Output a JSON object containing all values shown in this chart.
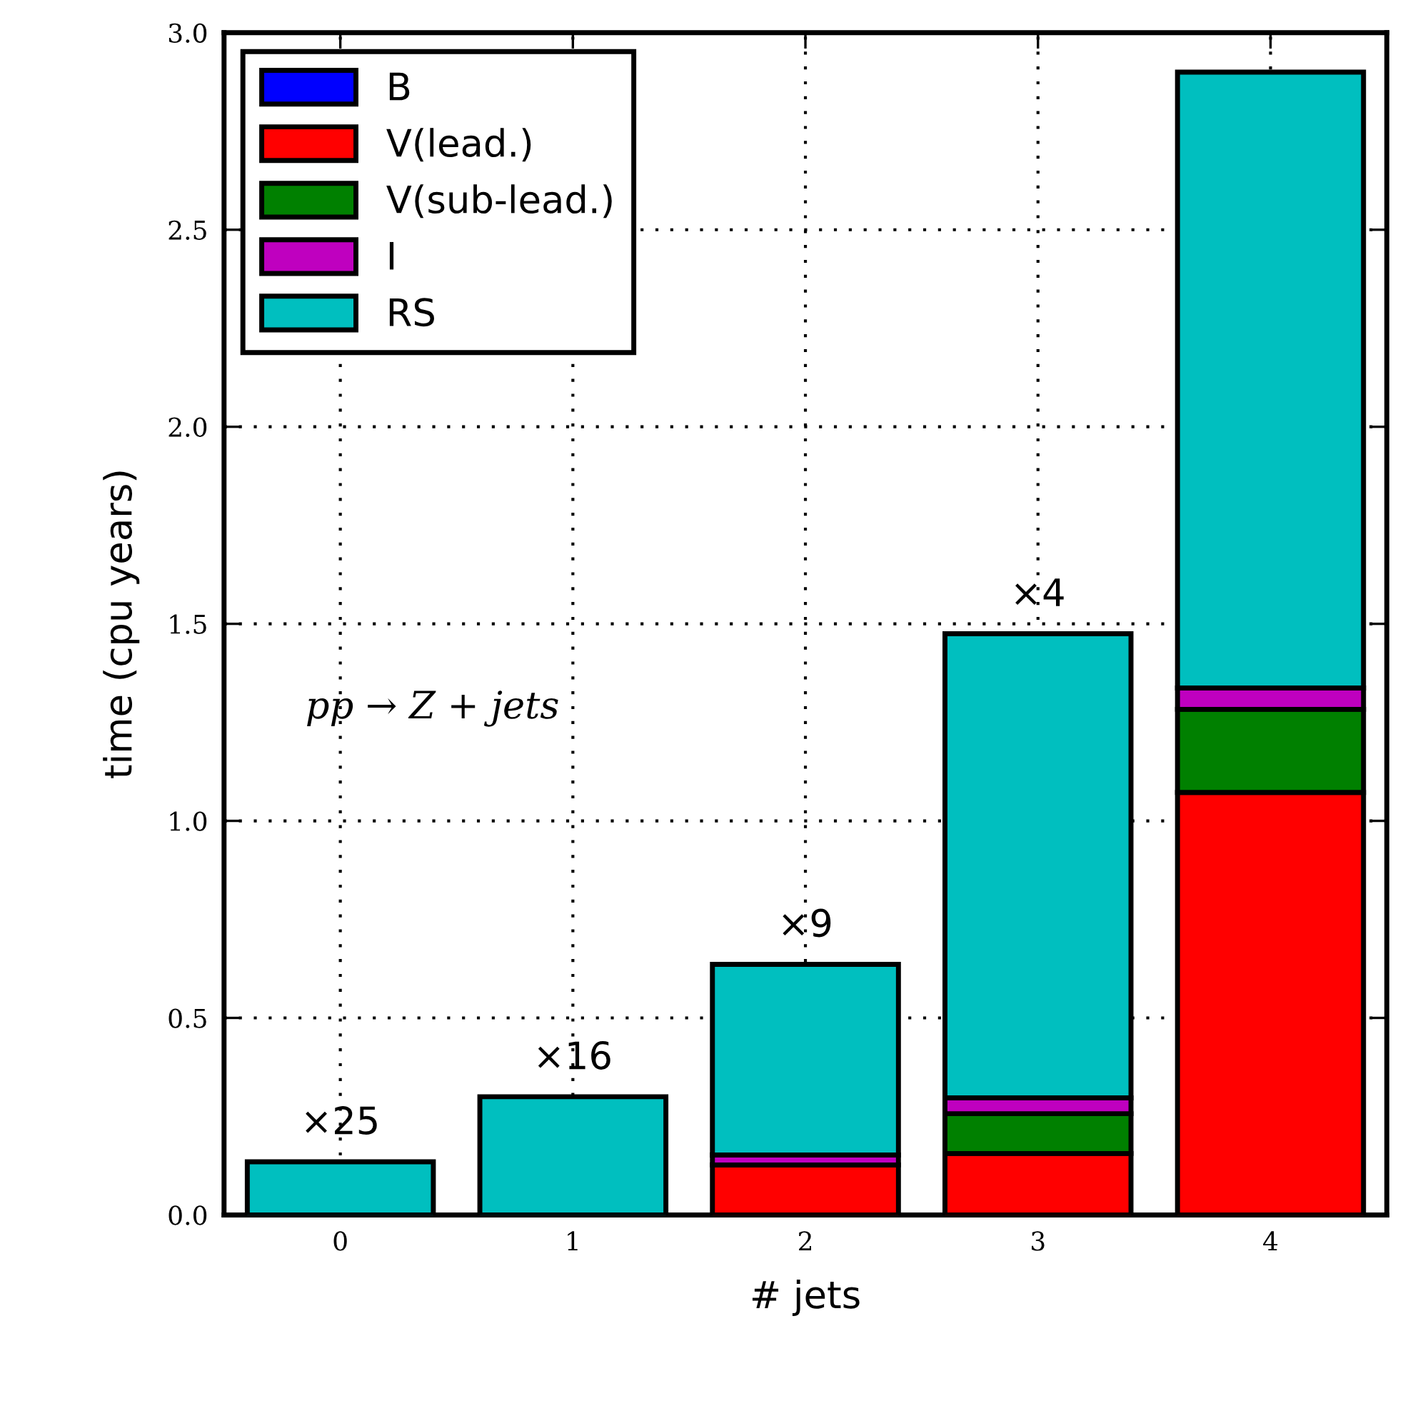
{
  "chart_data": {
    "type": "bar",
    "stacked": true,
    "xlabel": "# jets",
    "ylabel": "time (cpu years)",
    "categories": [
      "0",
      "1",
      "2",
      "3",
      "4"
    ],
    "series": [
      {
        "name": "B",
        "color": "#0000ff",
        "values": [
          null,
          null,
          null,
          null,
          null
        ]
      },
      {
        "name": "V(lead.)",
        "color": "#ff0000",
        "values": [
          null,
          null,
          0.127,
          0.156,
          1.072
        ]
      },
      {
        "name": "V(sub-lead.)",
        "color": "#008000",
        "values": [
          null,
          null,
          null,
          0.101,
          0.211
        ]
      },
      {
        "name": "I",
        "color": "#bf00bf",
        "values": [
          null,
          null,
          0.025,
          0.04,
          0.054
        ]
      },
      {
        "name": "RS",
        "color": "#00bfbf",
        "values": [
          0.135,
          0.3,
          0.484,
          1.178,
          1.563
        ]
      }
    ],
    "ylim": [
      0,
      3.0
    ],
    "yticks": [
      {
        "value": 0,
        "label": "0.0"
      },
      {
        "value": 0.5,
        "label": "0.5"
      },
      {
        "value": 1.0,
        "label": "1.0"
      },
      {
        "value": 1.5,
        "label": "1.5"
      },
      {
        "value": 2.0,
        "label": "2.0"
      },
      {
        "value": 2.5,
        "label": "2.5"
      },
      {
        "value": 3.0,
        "label": "3.0"
      }
    ],
    "grid": true,
    "legend": "top left",
    "annotations": [
      {
        "text": "×25",
        "x": "0",
        "y": 0.135
      },
      {
        "text": "×16",
        "x": "1",
        "y": 0.3
      },
      {
        "text": "×9",
        "x": "2",
        "y": 0.636
      },
      {
        "text": "×4",
        "x": "3",
        "y": 1.475
      },
      "pp → Z + jets"
    ]
  }
}
